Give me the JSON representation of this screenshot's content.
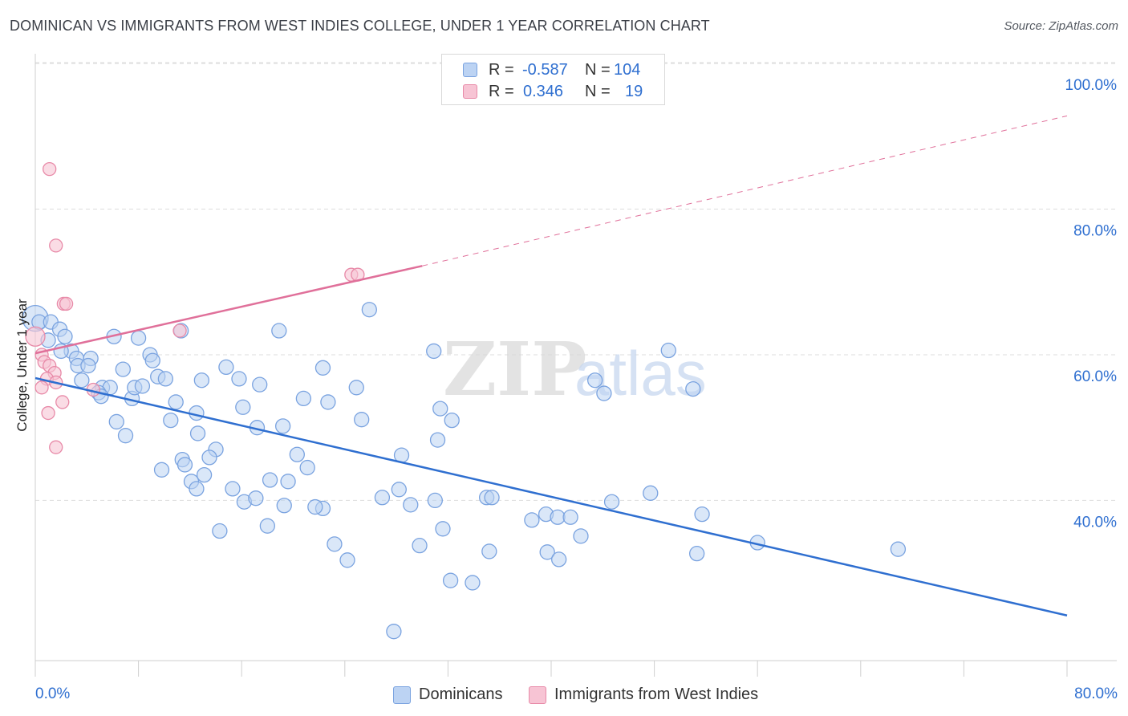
{
  "header": {
    "title": "DOMINICAN VS IMMIGRANTS FROM WEST INDIES COLLEGE, UNDER 1 YEAR CORRELATION CHART",
    "source": "Source: ZipAtlas.com"
  },
  "legend": {
    "blue": {
      "r_label": "R =",
      "r_value": "-0.587",
      "n_label": "N =",
      "n_value": "104"
    },
    "pink": {
      "r_label": "R =",
      "r_value": "0.346",
      "n_label": "N =",
      "n_value": "19"
    }
  },
  "bottom_legend": {
    "series1": "Dominicans",
    "series2": "Immigrants from West Indies"
  },
  "colors": {
    "blue_fill": "#bcd3f3",
    "blue_stroke": "#7aa3e0",
    "blue_line": "#2f6fd0",
    "pink_fill": "#f7c4d4",
    "pink_stroke": "#e88aa8",
    "pink_line": "#e0709a",
    "axis_text": "#2f6fd0",
    "grid": "#dddddd"
  },
  "watermark": {
    "part1": "ZIP",
    "part2": "atlas"
  },
  "chart_data": {
    "type": "scatter",
    "title": "DOMINICAN VS IMMIGRANTS FROM WEST INDIES COLLEGE, UNDER 1 YEAR CORRELATION CHART",
    "xlabel": "",
    "ylabel": "College, Under 1 year",
    "xlim": [
      0,
      80
    ],
    "ylim": [
      18,
      101
    ],
    "x_tick_labels": [
      {
        "value": 0,
        "label": "0.0%"
      },
      {
        "value": 80,
        "label": "80.0%"
      }
    ],
    "y_tick_labels": [
      {
        "value": 40,
        "label": "40.0%"
      },
      {
        "value": 60,
        "label": "60.0%"
      },
      {
        "value": 80,
        "label": "80.0%"
      },
      {
        "value": 100,
        "label": "100.0%"
      }
    ],
    "grid": true,
    "series": [
      {
        "name": "Dominicans",
        "color": "#7aa3e0",
        "points": [
          [
            0.0,
            65.0
          ],
          [
            0.3,
            64.5
          ],
          [
            1.2,
            64.5
          ],
          [
            1.0,
            62.0
          ],
          [
            1.9,
            63.5
          ],
          [
            2.3,
            62.5
          ],
          [
            2.8,
            60.5
          ],
          [
            2.0,
            60.5
          ],
          [
            3.2,
            59.5
          ],
          [
            4.3,
            59.5
          ],
          [
            3.3,
            58.5
          ],
          [
            4.1,
            58.5
          ],
          [
            3.6,
            56.5
          ],
          [
            5.2,
            55.5
          ],
          [
            5.8,
            55.5
          ],
          [
            4.9,
            54.8
          ],
          [
            5.1,
            54.3
          ],
          [
            6.1,
            62.5
          ],
          [
            6.8,
            58.0
          ],
          [
            7.5,
            54.0
          ],
          [
            7.7,
            55.5
          ],
          [
            8.0,
            62.3
          ],
          [
            8.3,
            55.7
          ],
          [
            8.9,
            60.0
          ],
          [
            9.1,
            59.2
          ],
          [
            9.5,
            57.0
          ],
          [
            10.1,
            56.7
          ],
          [
            10.9,
            53.5
          ],
          [
            11.3,
            63.3
          ],
          [
            10.5,
            51.0
          ],
          [
            6.3,
            50.8
          ],
          [
            7.0,
            48.9
          ],
          [
            12.9,
            56.5
          ],
          [
            14.8,
            58.3
          ],
          [
            15.8,
            56.7
          ],
          [
            12.5,
            52.0
          ],
          [
            16.1,
            52.8
          ],
          [
            17.4,
            55.9
          ],
          [
            18.9,
            63.3
          ],
          [
            19.2,
            50.2
          ],
          [
            17.2,
            50.0
          ],
          [
            20.8,
            54.0
          ],
          [
            22.3,
            58.2
          ],
          [
            22.7,
            53.5
          ],
          [
            24.9,
            55.5
          ],
          [
            25.3,
            51.1
          ],
          [
            25.9,
            66.2
          ],
          [
            12.6,
            49.2
          ],
          [
            14.0,
            47.0
          ],
          [
            11.4,
            45.6
          ],
          [
            13.5,
            45.9
          ],
          [
            11.6,
            44.9
          ],
          [
            9.8,
            44.2
          ],
          [
            12.1,
            42.6
          ],
          [
            13.1,
            43.5
          ],
          [
            12.5,
            41.6
          ],
          [
            15.3,
            41.6
          ],
          [
            16.2,
            39.8
          ],
          [
            17.1,
            40.3
          ],
          [
            18.2,
            42.8
          ],
          [
            19.6,
            42.6
          ],
          [
            20.3,
            46.3
          ],
          [
            21.1,
            44.5
          ],
          [
            22.3,
            38.9
          ],
          [
            21.7,
            39.1
          ],
          [
            18.0,
            36.5
          ],
          [
            19.3,
            39.3
          ],
          [
            14.3,
            35.8
          ],
          [
            23.2,
            34.0
          ],
          [
            24.2,
            31.8
          ],
          [
            26.9,
            40.4
          ],
          [
            28.2,
            41.5
          ],
          [
            28.4,
            46.2
          ],
          [
            29.1,
            39.4
          ],
          [
            30.9,
            60.5
          ],
          [
            31.4,
            52.6
          ],
          [
            32.3,
            51.0
          ],
          [
            31.2,
            48.3
          ],
          [
            31.0,
            40.0
          ],
          [
            29.8,
            33.8
          ],
          [
            31.6,
            36.1
          ],
          [
            32.2,
            29.0
          ],
          [
            33.9,
            28.7
          ],
          [
            35.0,
            40.4
          ],
          [
            35.4,
            40.4
          ],
          [
            35.2,
            33.0
          ],
          [
            38.5,
            37.3
          ],
          [
            39.6,
            38.1
          ],
          [
            40.5,
            37.7
          ],
          [
            41.5,
            37.7
          ],
          [
            39.7,
            32.9
          ],
          [
            40.6,
            31.9
          ],
          [
            42.3,
            35.1
          ],
          [
            43.4,
            56.5
          ],
          [
            44.1,
            54.7
          ],
          [
            44.7,
            39.8
          ],
          [
            47.7,
            41.0
          ],
          [
            49.1,
            60.6
          ],
          [
            51.0,
            55.3
          ],
          [
            51.7,
            38.1
          ],
          [
            51.3,
            32.7
          ],
          [
            56.0,
            34.2
          ],
          [
            66.9,
            33.3
          ],
          [
            27.8,
            22.0
          ]
        ]
      },
      {
        "name": "Immigrants from West Indies",
        "color": "#e88aa8",
        "points": [
          [
            1.1,
            85.5
          ],
          [
            1.6,
            75.0
          ],
          [
            0.0,
            62.5
          ],
          [
            0.5,
            60.0
          ],
          [
            0.7,
            59.0
          ],
          [
            1.1,
            58.5
          ],
          [
            1.5,
            57.5
          ],
          [
            0.9,
            56.7
          ],
          [
            1.6,
            56.2
          ],
          [
            0.5,
            55.5
          ],
          [
            2.1,
            53.5
          ],
          [
            1.0,
            52.0
          ],
          [
            1.6,
            47.3
          ],
          [
            2.2,
            67.0
          ],
          [
            2.4,
            67.0
          ],
          [
            11.2,
            63.3
          ],
          [
            4.5,
            55.2
          ],
          [
            24.5,
            71.0
          ],
          [
            25.0,
            71.0
          ]
        ]
      }
    ],
    "trend_lines": [
      {
        "series": "Dominicans",
        "x": [
          0,
          80
        ],
        "y": [
          56.8,
          24.2
        ],
        "style": "solid"
      },
      {
        "series": "Immigrants from West Indies",
        "x": [
          0,
          30
        ],
        "y": [
          60.2,
          72.2
        ],
        "style": "solid"
      },
      {
        "series": "Immigrants from West Indies",
        "x": [
          30,
          80
        ],
        "y": [
          72.2,
          92.8
        ],
        "style": "dashed"
      }
    ]
  }
}
